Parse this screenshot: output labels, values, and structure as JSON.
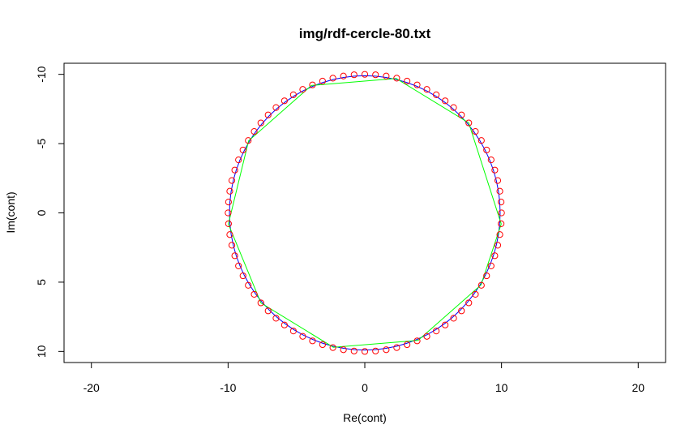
{
  "chart_data": {
    "type": "scatter",
    "title": "img/rdf-cercle-80.txt",
    "xlabel": "Re(cont)",
    "ylabel": "Im(cont)",
    "xlim": [
      -22,
      22
    ],
    "ylim": [
      -10.8,
      10.8
    ],
    "y_axis_inverted": true,
    "x_ticks": [
      -20,
      -10,
      0,
      10,
      20
    ],
    "y_ticks": [
      -10,
      -5,
      0,
      5,
      10
    ],
    "grid": false,
    "colors": {
      "points": "#ff0000",
      "contour": "#0000ff",
      "polygon": "#00ff00",
      "frame": "#000000"
    },
    "series": [
      {
        "kind": "points",
        "radius": 10,
        "count": 80,
        "offset_deg": 4.5,
        "color": "#ff0000"
      },
      {
        "kind": "line",
        "radius": 9.9,
        "count": 80,
        "offset_deg": 4.5,
        "color": "#0000ff"
      },
      {
        "kind": "polygon",
        "color": "#00ff00",
        "x": [
          9.98,
          7.6,
          2.3,
          -3.9,
          -8.5,
          -9.98,
          -7.6,
          -2.3,
          3.9,
          8.5,
          9.98
        ],
        "y": [
          0.8,
          -6.5,
          -9.7,
          -9.2,
          -5.2,
          0.8,
          6.5,
          9.7,
          9.2,
          5.2,
          0.8
        ]
      }
    ]
  }
}
